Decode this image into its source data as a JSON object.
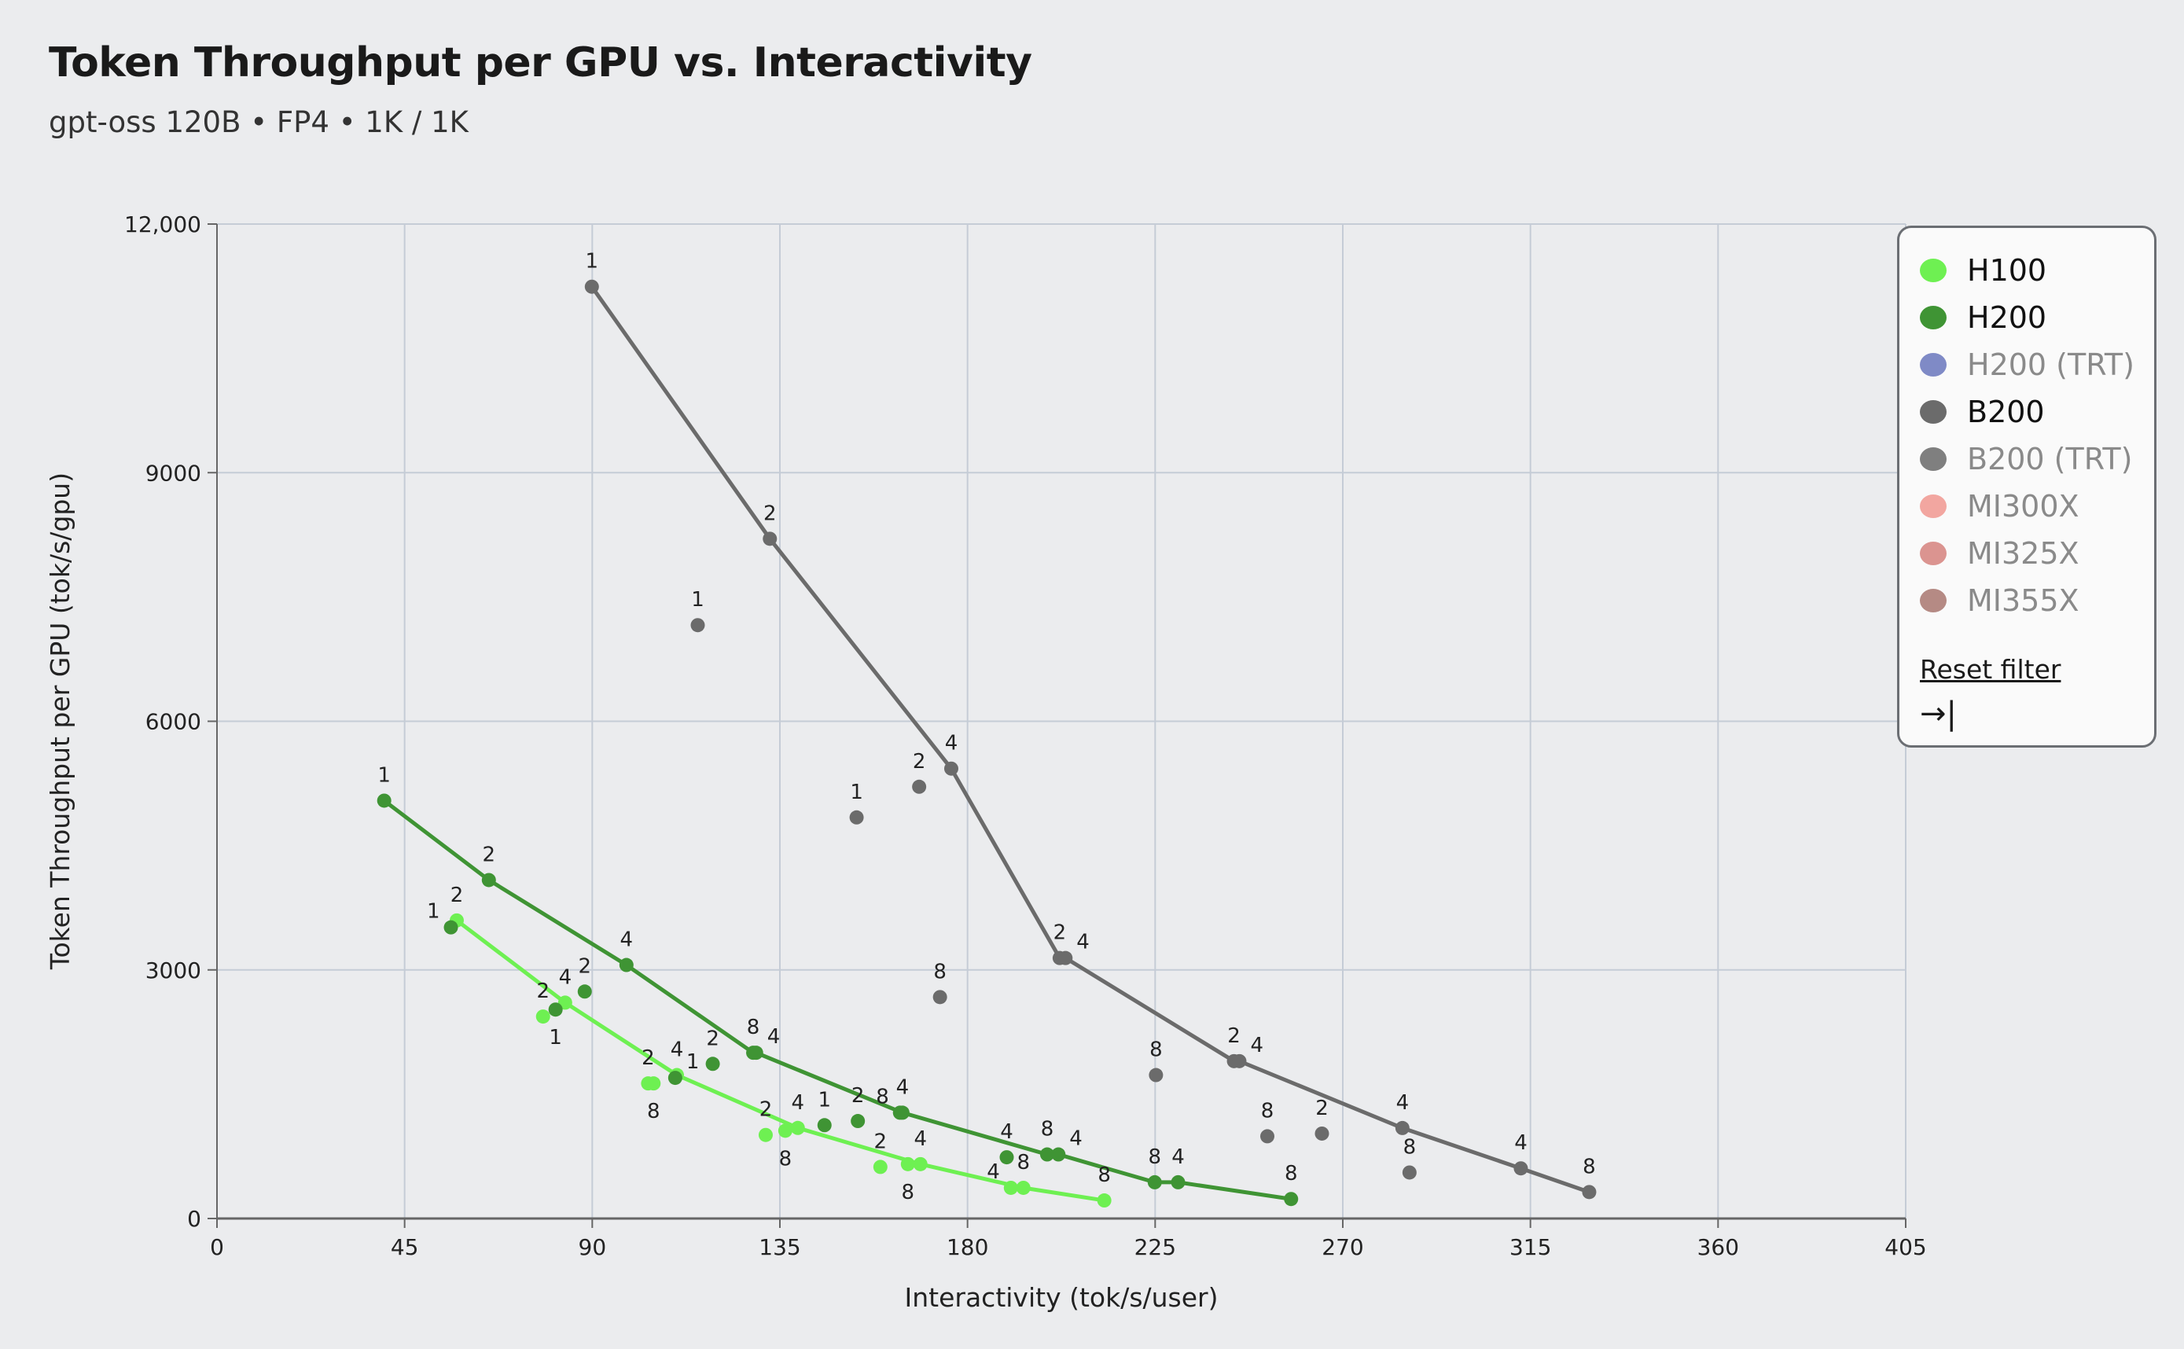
{
  "header": {
    "title": "Token Throughput per GPU vs. Interactivity",
    "subtitle": "gpt-oss 120B • FP4 • 1K / 1K"
  },
  "legend": {
    "items": [
      {
        "label": "H100",
        "color": "#6ef052",
        "active": true
      },
      {
        "label": "H200",
        "color": "#3f9434",
        "active": true
      },
      {
        "label": "H200 (TRT)",
        "color": "#7f8ac6",
        "active": false
      },
      {
        "label": "B200",
        "color": "#6b6b6b",
        "active": true
      },
      {
        "label": "B200 (TRT)",
        "color": "#7f7f7f",
        "active": false
      },
      {
        "label": "MI300X",
        "color": "#f2a6a0",
        "active": false
      },
      {
        "label": "MI325X",
        "color": "#db9490",
        "active": false
      },
      {
        "label": "MI355X",
        "color": "#b58a84",
        "active": false
      }
    ],
    "reset_label": "Reset filter",
    "collapse_icon": "→|"
  },
  "chart_data": {
    "type": "scatter",
    "xlabel": "Interactivity (tok/s/user)",
    "ylabel": "Token Throughput per GPU (tok/s/gpu)",
    "xlim": [
      0,
      405
    ],
    "ylim": [
      0,
      12000
    ],
    "xticks": [
      0,
      45,
      90,
      135,
      180,
      225,
      270,
      315,
      360,
      405
    ],
    "xtick_labels": [
      "0",
      "45",
      "90",
      "135",
      "180",
      "225",
      "270",
      "315",
      "360",
      "405"
    ],
    "yticks": [
      0,
      3000,
      6000,
      9000,
      12000
    ],
    "ytick_labels": [
      "0",
      "3000",
      "6000",
      "9000",
      "12,000"
    ],
    "grid": true,
    "legend_position": "top-right",
    "series": [
      {
        "name": "H100",
        "color": "#6ef052",
        "frontier": [
          [
            57.5,
            3597,
            "2"
          ],
          [
            83.5,
            2605,
            "4"
          ],
          [
            110.3,
            1731,
            "4"
          ],
          [
            139.3,
            1093,
            "4"
          ],
          [
            168.7,
            656,
            "4"
          ],
          [
            193.4,
            370,
            "8"
          ],
          [
            212.8,
            218,
            "8"
          ]
        ],
        "points": [
          [
            78.2,
            2437,
            "2"
          ],
          [
            103.4,
            1630,
            "2"
          ],
          [
            104.7,
            1630,
            "8"
          ],
          [
            131.6,
            1008,
            "2"
          ],
          [
            136.3,
            1059,
            "8"
          ],
          [
            159.1,
            622,
            "2"
          ],
          [
            165.7,
            656,
            "8"
          ],
          [
            190.4,
            370,
            "4"
          ]
        ]
      },
      {
        "name": "H200",
        "color": "#3f9434",
        "frontier": [
          [
            40.1,
            5042,
            "1"
          ],
          [
            65.2,
            4084,
            "2"
          ],
          [
            98.2,
            3059,
            "4"
          ],
          [
            128.6,
            2000,
            "8"
          ],
          [
            129.3,
            2000,
            "4"
          ],
          [
            164.4,
            1277,
            "4"
          ],
          [
            199.1,
            773,
            "8"
          ],
          [
            201.8,
            773,
            "4"
          ],
          [
            224.9,
            437,
            "8"
          ],
          [
            230.5,
            437,
            "4"
          ],
          [
            257.6,
            235,
            "8"
          ]
        ],
        "points": [
          [
            56.1,
            3513,
            "1"
          ],
          [
            81.2,
            2521,
            "1"
          ],
          [
            88.2,
            2739,
            "2"
          ],
          [
            109.9,
            1697,
            "1"
          ],
          [
            118.9,
            1866,
            "2"
          ],
          [
            145.7,
            1126,
            "1"
          ],
          [
            153.7,
            1176,
            "2"
          ],
          [
            163.8,
            1277,
            "8"
          ],
          [
            189.4,
            739,
            "4"
          ]
        ]
      },
      {
        "name": "B200",
        "color": "#6b6b6b",
        "frontier": [
          [
            89.9,
            11244,
            "1"
          ],
          [
            132.6,
            8202,
            "2"
          ],
          [
            176.1,
            5429,
            "4"
          ],
          [
            202.1,
            3143,
            "2"
          ],
          [
            203.5,
            3143,
            "4"
          ],
          [
            243.9,
            1899,
            "2"
          ],
          [
            245.2,
            1899,
            "4"
          ],
          [
            284.3,
            1092,
            "4"
          ],
          [
            312.7,
            605,
            "4"
          ],
          [
            329.1,
            319,
            "8"
          ]
        ],
        "points": [
          [
            115.3,
            7160,
            "1"
          ],
          [
            153.4,
            4840,
            "1"
          ],
          [
            168.4,
            5210,
            "2"
          ],
          [
            173.4,
            2672,
            "8"
          ],
          [
            225.2,
            1731,
            "8"
          ],
          [
            251.9,
            992,
            "8"
          ],
          [
            265.0,
            1025,
            "2"
          ],
          [
            286.0,
            555,
            "8"
          ]
        ]
      }
    ]
  }
}
